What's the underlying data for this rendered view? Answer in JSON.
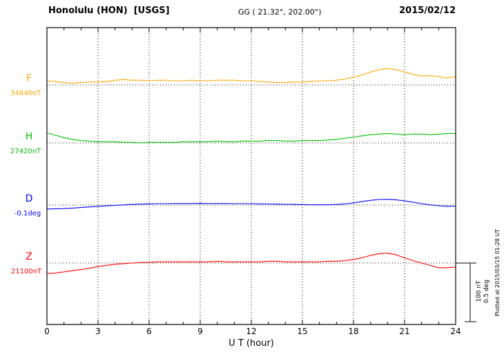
{
  "header": {
    "station_title": "Honolulu (HON)  [USGS]",
    "coords": "GG ( 21.32°, 202.00°)",
    "date": "2015/02/12"
  },
  "scalebar": {
    "label_nt": "100 nT",
    "label_deg": "0.5 deg"
  },
  "plotted_at": "Plotted at 2015/03/15 01:28 UT",
  "chart_data": {
    "type": "line",
    "title": "Honolulu (HON) [USGS] magnetogram 2015/02/12",
    "xlabel": "U T (hour)",
    "xlim": [
      0,
      24
    ],
    "x_ticks": [
      0,
      3,
      6,
      9,
      12,
      15,
      18,
      21,
      24
    ],
    "x_start": 0,
    "x_step": 0.5,
    "grid": "vertical dotted every 3 h, dotted horizontal baseline per channel",
    "scalebar": {
      "nT_per_bar": 100,
      "deg_per_bar": 0.5
    },
    "series": [
      {
        "name": "F",
        "unit": "nT",
        "base": 34640,
        "base_label": "34640nT",
        "color": "#ffa500",
        "values": [
          34647,
          34646,
          34644,
          34643,
          34644,
          34645,
          34645,
          34646,
          34648,
          34649,
          34648,
          34648,
          34647,
          34648,
          34648,
          34647,
          34647,
          34648,
          34647,
          34647,
          34648,
          34648,
          34648,
          34647,
          34647,
          34646,
          34645,
          34644,
          34644,
          34645,
          34645,
          34646,
          34647,
          34647,
          34648,
          34650,
          34653,
          34657,
          34662,
          34666,
          34668,
          34666,
          34662,
          34658,
          34655,
          34656,
          34654,
          34652,
          34654
        ]
      },
      {
        "name": "H",
        "unit": "nT",
        "base": 27420,
        "base_label": "27420nT",
        "color": "#00c000",
        "values": [
          27437,
          27433,
          27429,
          27426,
          27424,
          27423,
          27422,
          27422,
          27422,
          27421,
          27421,
          27420,
          27421,
          27421,
          27421,
          27421,
          27422,
          27422,
          27422,
          27422,
          27423,
          27422,
          27422,
          27423,
          27423,
          27423,
          27424,
          27424,
          27423,
          27423,
          27424,
          27424,
          27424,
          27425,
          27426,
          27428,
          27430,
          27432,
          27434,
          27435,
          27436,
          27435,
          27434,
          27435,
          27435,
          27434,
          27435,
          27436,
          27436
        ]
      },
      {
        "name": "D",
        "unit": "deg",
        "base": -0.1,
        "base_label": "-0.1deg",
        "color": "#0000ff",
        "values": [
          -0.134,
          -0.132,
          -0.13,
          -0.126,
          -0.121,
          -0.116,
          -0.111,
          -0.107,
          -0.103,
          -0.099,
          -0.095,
          -0.092,
          -0.09,
          -0.088,
          -0.088,
          -0.087,
          -0.087,
          -0.087,
          -0.086,
          -0.087,
          -0.087,
          -0.087,
          -0.088,
          -0.088,
          -0.088,
          -0.09,
          -0.091,
          -0.092,
          -0.094,
          -0.095,
          -0.096,
          -0.097,
          -0.098,
          -0.097,
          -0.095,
          -0.09,
          -0.082,
          -0.07,
          -0.06,
          -0.053,
          -0.051,
          -0.055,
          -0.064,
          -0.076,
          -0.088,
          -0.098,
          -0.106,
          -0.111,
          -0.109
        ]
      },
      {
        "name": "Z",
        "unit": "nT",
        "base": 21100,
        "base_label": "21100nT",
        "color": "#ff0000",
        "values": [
          21082,
          21083,
          21085,
          21087,
          21089,
          21091,
          21094,
          21096,
          21098,
          21099,
          21100,
          21101,
          21101,
          21102,
          21102,
          21102,
          21102,
          21102,
          21102,
          21102,
          21103,
          21102,
          21102,
          21102,
          21102,
          21102,
          21103,
          21103,
          21102,
          21102,
          21102,
          21102,
          21102,
          21103,
          21103,
          21104,
          21106,
          21109,
          21113,
          21116,
          21117,
          21114,
          21109,
          21104,
          21100,
          21096,
          21092,
          21092,
          21093
        ]
      }
    ]
  }
}
